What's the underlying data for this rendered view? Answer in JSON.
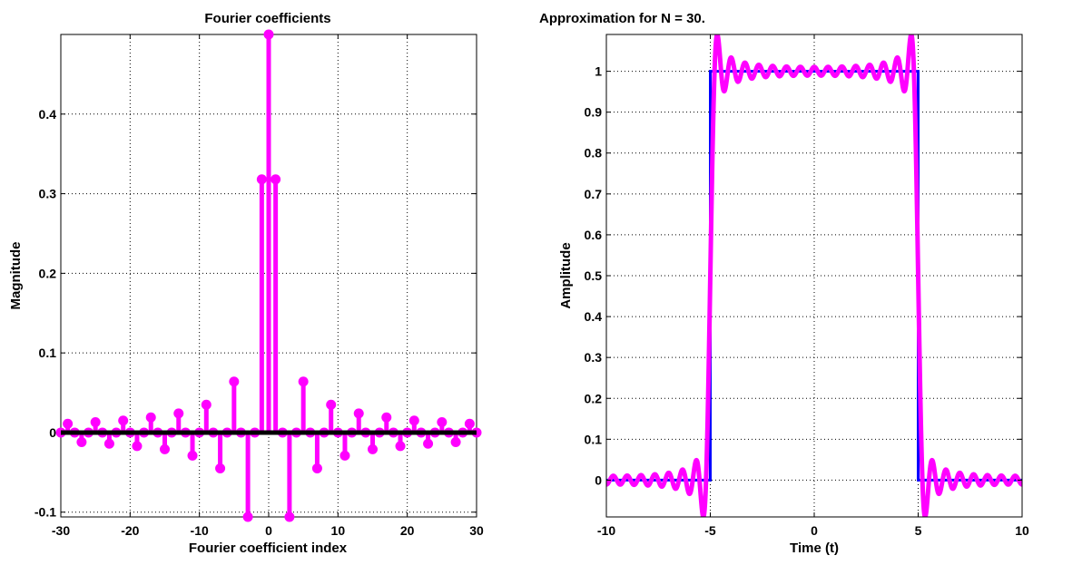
{
  "colors": {
    "stem": "#ff00ff",
    "zero_line": "#000000",
    "square_wave": "#0000ff",
    "approximation": "#ff00ff"
  },
  "chart_data": [
    {
      "type": "stem",
      "title": "Fourier coefficients",
      "xlabel": "Fourier coefficient index",
      "ylabel": "Magnitude",
      "xlim": [
        -30,
        30
      ],
      "ylim": [
        -0.106,
        0.5
      ],
      "xticks": [
        "-30",
        "-20",
        "-10",
        "0",
        "10",
        "20",
        "30"
      ],
      "yticks": [
        "-0.1",
        "0",
        "0.1",
        "0.2",
        "0.3",
        "0.4"
      ],
      "grid": true,
      "x": [
        -30,
        -29,
        -28,
        -27,
        -26,
        -25,
        -24,
        -23,
        -22,
        -21,
        -20,
        -19,
        -18,
        -17,
        -16,
        -15,
        -14,
        -13,
        -12,
        -11,
        -10,
        -9,
        -8,
        -7,
        -6,
        -5,
        -4,
        -3,
        -2,
        -1,
        0,
        1,
        2,
        3,
        4,
        5,
        6,
        7,
        8,
        9,
        10,
        11,
        12,
        13,
        14,
        15,
        16,
        17,
        18,
        19,
        20,
        21,
        22,
        23,
        24,
        25,
        26,
        27,
        28,
        29,
        30
      ],
      "values": [
        0,
        0.011,
        0,
        -0.012,
        0,
        0.013,
        0,
        -0.014,
        0,
        0.015,
        0,
        -0.017,
        0,
        0.019,
        0,
        -0.021,
        0,
        0.024,
        0,
        -0.029,
        0,
        0.035,
        0,
        -0.045,
        0,
        0.064,
        0,
        -0.106,
        0,
        0.318,
        0.5,
        0.318,
        0,
        -0.106,
        0,
        0.064,
        0,
        -0.045,
        0,
        0.035,
        0,
        -0.029,
        0,
        0.024,
        0,
        -0.021,
        0,
        0.019,
        0,
        -0.017,
        0,
        0.015,
        0,
        -0.014,
        0,
        0.013,
        0,
        -0.012,
        0,
        0.011,
        0
      ]
    },
    {
      "type": "line",
      "title": "Approximation for N = 30.",
      "xlabel": "Time (t)",
      "ylabel": "Amplitude",
      "xlim": [
        -10,
        10
      ],
      "ylim": [
        -0.09,
        1.09
      ],
      "xticks": [
        "-10",
        "-5",
        "0",
        "5",
        "10"
      ],
      "yticks": [
        "0",
        "0.1",
        "0.2",
        "0.3",
        "0.4",
        "0.5",
        "0.6",
        "0.7",
        "0.8",
        "0.9",
        "1"
      ],
      "grid": true,
      "series": [
        {
          "kind": "square_wave",
          "x": [
            -10,
            -5,
            -5,
            5,
            5,
            10
          ],
          "y": [
            0,
            0,
            1,
            1,
            0,
            0
          ]
        },
        {
          "kind": "fourier_approximation",
          "period": 20,
          "pulse_half_width": 5,
          "n_terms": 30
        }
      ]
    }
  ]
}
